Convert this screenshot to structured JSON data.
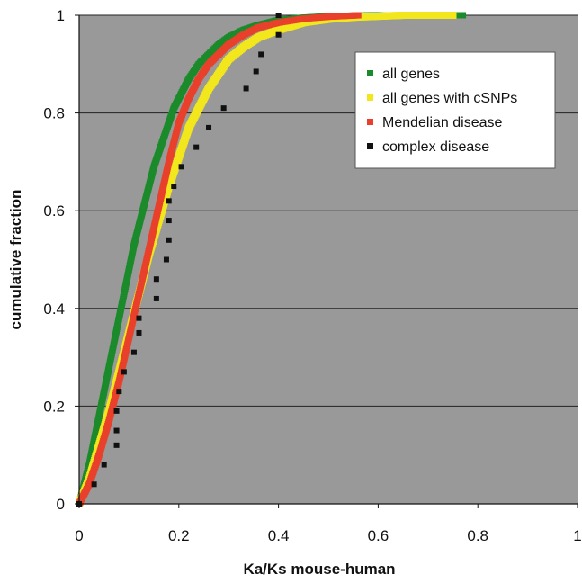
{
  "chart_data": {
    "type": "scatter",
    "title": "",
    "xlabel": "Ka/Ks mouse-human",
    "ylabel": "cumulative fraction",
    "xlim": [
      0,
      1
    ],
    "ylim": [
      0,
      1
    ],
    "x_ticks": [
      "0",
      "0.2",
      "0.4",
      "0.6",
      "0.8",
      "1"
    ],
    "y_ticks": [
      "0",
      "0.2",
      "0.4",
      "0.6",
      "0.8",
      "1"
    ],
    "grid": "horizontal",
    "legend_position": "top-right",
    "background_color": "#999999",
    "series": [
      {
        "name": "all genes",
        "color": "#1a8a2a",
        "points": [
          [
            0,
            0
          ],
          [
            0.01,
            0.04
          ],
          [
            0.02,
            0.08
          ],
          [
            0.03,
            0.13
          ],
          [
            0.04,
            0.18
          ],
          [
            0.05,
            0.23
          ],
          [
            0.06,
            0.28
          ],
          [
            0.07,
            0.33
          ],
          [
            0.08,
            0.38
          ],
          [
            0.09,
            0.43
          ],
          [
            0.1,
            0.48
          ],
          [
            0.11,
            0.53
          ],
          [
            0.12,
            0.57
          ],
          [
            0.13,
            0.61
          ],
          [
            0.14,
            0.65
          ],
          [
            0.15,
            0.69
          ],
          [
            0.16,
            0.72
          ],
          [
            0.17,
            0.75
          ],
          [
            0.18,
            0.78
          ],
          [
            0.19,
            0.81
          ],
          [
            0.2,
            0.83
          ],
          [
            0.22,
            0.87
          ],
          [
            0.24,
            0.9
          ],
          [
            0.26,
            0.92
          ],
          [
            0.28,
            0.94
          ],
          [
            0.3,
            0.955
          ],
          [
            0.33,
            0.97
          ],
          [
            0.36,
            0.98
          ],
          [
            0.4,
            0.99
          ],
          [
            0.45,
            0.995
          ],
          [
            0.5,
            0.998
          ],
          [
            0.55,
            0.999
          ],
          [
            0.6,
            1
          ],
          [
            0.65,
            1
          ],
          [
            0.68,
            1
          ],
          [
            0.7,
            1
          ],
          [
            0.74,
            1
          ],
          [
            0.77,
            1
          ]
        ]
      },
      {
        "name": "all genes with cSNPs",
        "color": "#f2e71c",
        "points": [
          [
            0,
            0
          ],
          [
            0.02,
            0.05
          ],
          [
            0.04,
            0.12
          ],
          [
            0.06,
            0.19
          ],
          [
            0.08,
            0.27
          ],
          [
            0.1,
            0.35
          ],
          [
            0.12,
            0.43
          ],
          [
            0.14,
            0.51
          ],
          [
            0.16,
            0.58
          ],
          [
            0.18,
            0.65
          ],
          [
            0.2,
            0.71
          ],
          [
            0.22,
            0.77
          ],
          [
            0.24,
            0.81
          ],
          [
            0.26,
            0.85
          ],
          [
            0.28,
            0.88
          ],
          [
            0.3,
            0.91
          ],
          [
            0.33,
            0.935
          ],
          [
            0.36,
            0.955
          ],
          [
            0.4,
            0.97
          ],
          [
            0.45,
            0.985
          ],
          [
            0.5,
            0.992
          ],
          [
            0.55,
            0.996
          ],
          [
            0.6,
            0.998
          ],
          [
            0.65,
            1
          ],
          [
            0.7,
            1
          ],
          [
            0.75,
            1
          ]
        ]
      },
      {
        "name": "Mendelian disease",
        "color": "#e8402a",
        "points": [
          [
            0,
            0
          ],
          [
            0.02,
            0.04
          ],
          [
            0.04,
            0.1
          ],
          [
            0.06,
            0.17
          ],
          [
            0.08,
            0.25
          ],
          [
            0.1,
            0.34
          ],
          [
            0.12,
            0.43
          ],
          [
            0.14,
            0.52
          ],
          [
            0.16,
            0.61
          ],
          [
            0.18,
            0.7
          ],
          [
            0.2,
            0.78
          ],
          [
            0.22,
            0.83
          ],
          [
            0.24,
            0.87
          ],
          [
            0.26,
            0.9
          ],
          [
            0.28,
            0.92
          ],
          [
            0.3,
            0.94
          ],
          [
            0.33,
            0.96
          ],
          [
            0.36,
            0.975
          ],
          [
            0.4,
            0.985
          ],
          [
            0.45,
            0.993
          ],
          [
            0.5,
            0.997
          ],
          [
            0.56,
            1
          ]
        ]
      },
      {
        "name": "complex disease",
        "color": "#111111",
        "points": [
          [
            0,
            0
          ],
          [
            0.03,
            0.04
          ],
          [
            0.05,
            0.08
          ],
          [
            0.075,
            0.12
          ],
          [
            0.075,
            0.15
          ],
          [
            0.075,
            0.19
          ],
          [
            0.08,
            0.23
          ],
          [
            0.09,
            0.27
          ],
          [
            0.11,
            0.31
          ],
          [
            0.12,
            0.35
          ],
          [
            0.12,
            0.38
          ],
          [
            0.155,
            0.42
          ],
          [
            0.155,
            0.46
          ],
          [
            0.175,
            0.5
          ],
          [
            0.18,
            0.54
          ],
          [
            0.18,
            0.58
          ],
          [
            0.18,
            0.62
          ],
          [
            0.19,
            0.65
          ],
          [
            0.205,
            0.69
          ],
          [
            0.235,
            0.73
          ],
          [
            0.26,
            0.77
          ],
          [
            0.29,
            0.81
          ],
          [
            0.335,
            0.85
          ],
          [
            0.355,
            0.885
          ],
          [
            0.365,
            0.92
          ],
          [
            0.4,
            0.96
          ],
          [
            0.4,
            1
          ]
        ]
      }
    ]
  }
}
